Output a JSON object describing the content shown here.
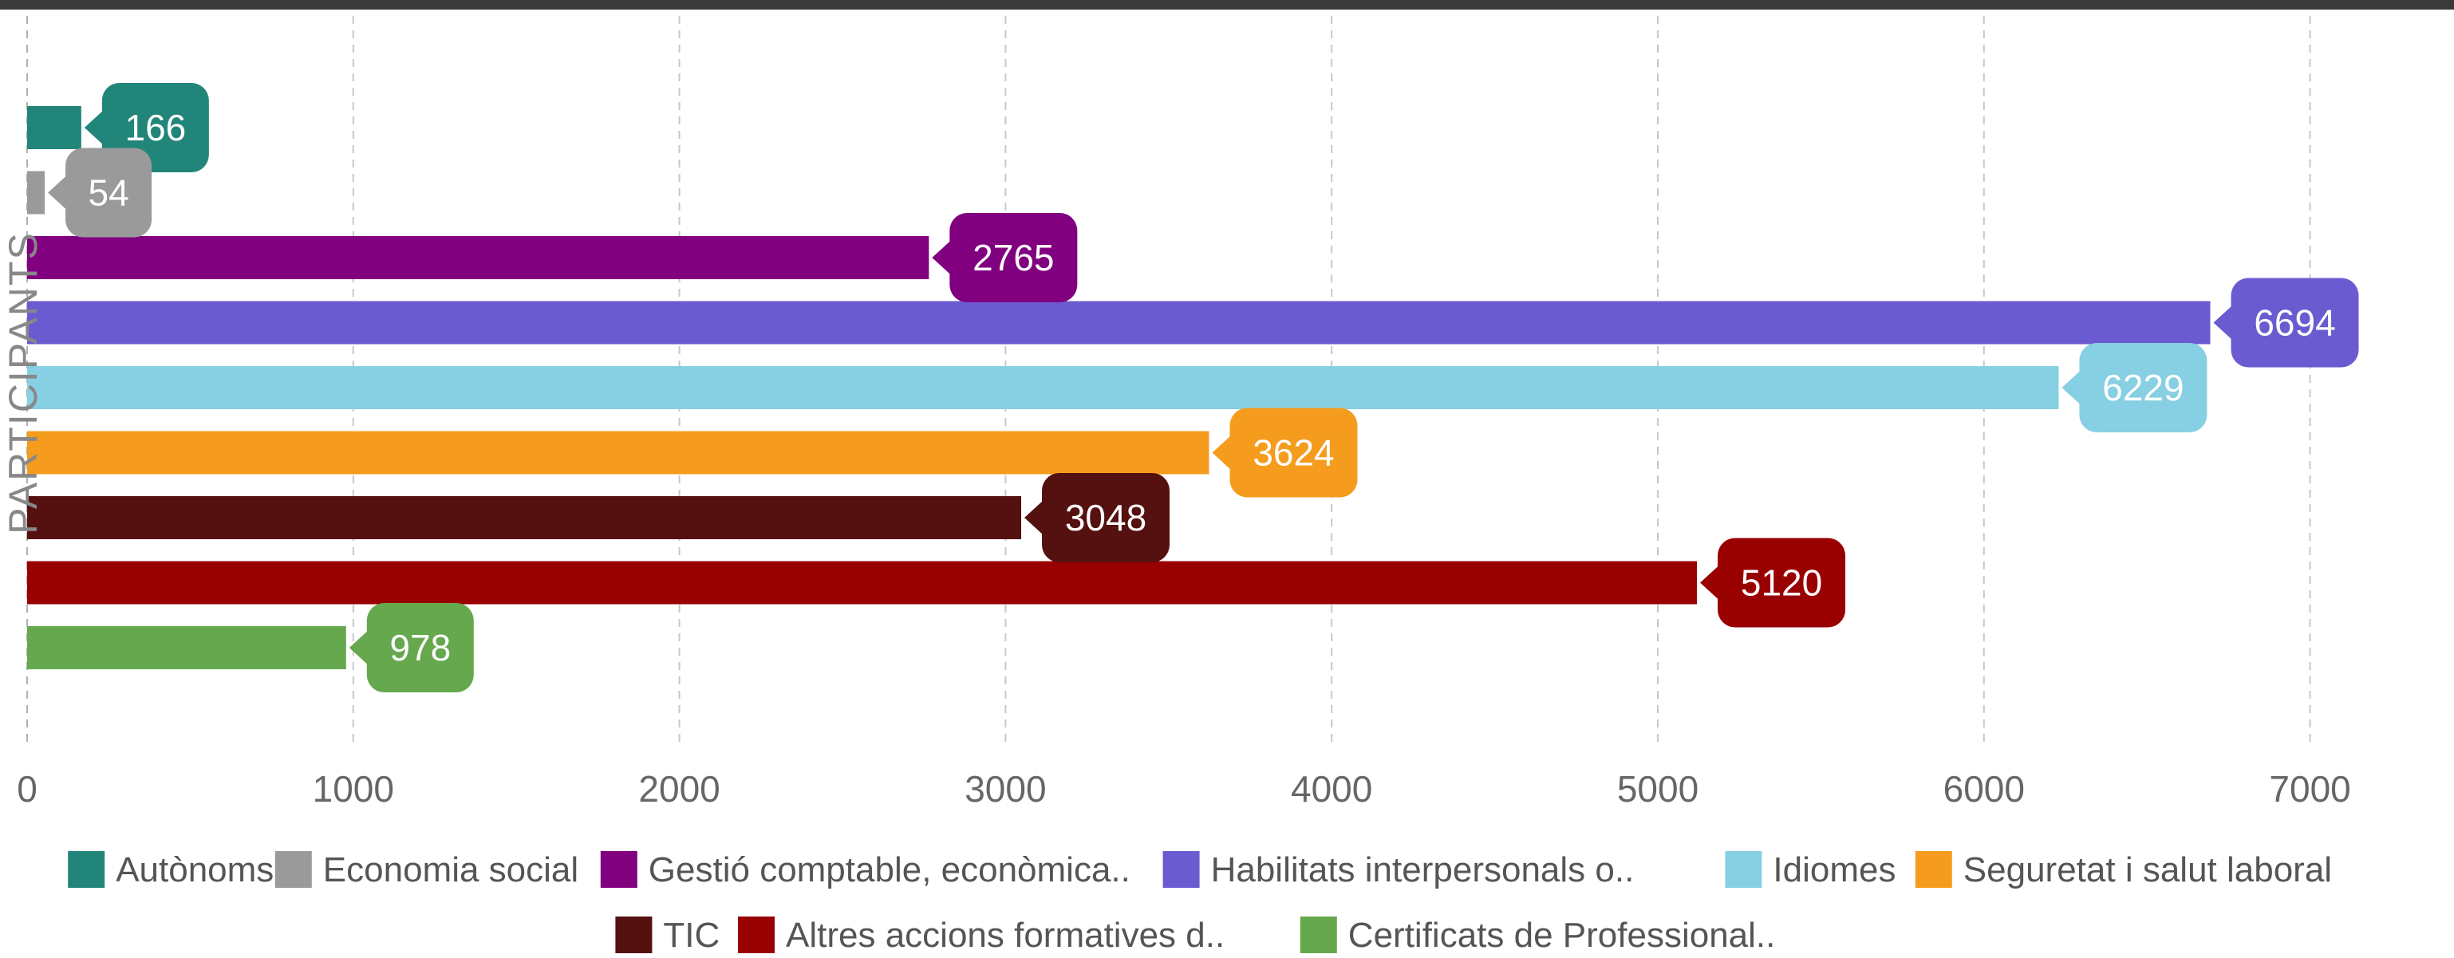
{
  "chart_data": {
    "type": "bar",
    "orientation": "horizontal",
    "title": "",
    "xlabel": "",
    "ylabel": "PARTICIPANTS",
    "xlim": [
      0,
      7300
    ],
    "xticks": [
      0,
      1000,
      2000,
      3000,
      4000,
      5000,
      6000,
      7000
    ],
    "grid": true,
    "legend_position": "bottom",
    "series": [
      {
        "name": "Autònoms",
        "value": 166,
        "color": "#21857a"
      },
      {
        "name": "Economia social",
        "value": 54,
        "color": "#9a9a9a"
      },
      {
        "name": "Gestió comptable, econòmica..",
        "value": 2765,
        "color": "#80007f"
      },
      {
        "name": "Habilitats interpersonals o..",
        "value": 6694,
        "color": "#6b5bd1"
      },
      {
        "name": "Idiomes",
        "value": 6229,
        "color": "#87cfe2"
      },
      {
        "name": "Seguretat i salut laboral",
        "value": 3624,
        "color": "#f59c1e"
      },
      {
        "name": "TIC",
        "value": 3048,
        "color": "#551010"
      },
      {
        "name": "Altres accions formatives d..",
        "value": 5120,
        "color": "#990000"
      },
      {
        "name": "Certificats de Professional..",
        "value": 978,
        "color": "#66a84d"
      }
    ]
  }
}
